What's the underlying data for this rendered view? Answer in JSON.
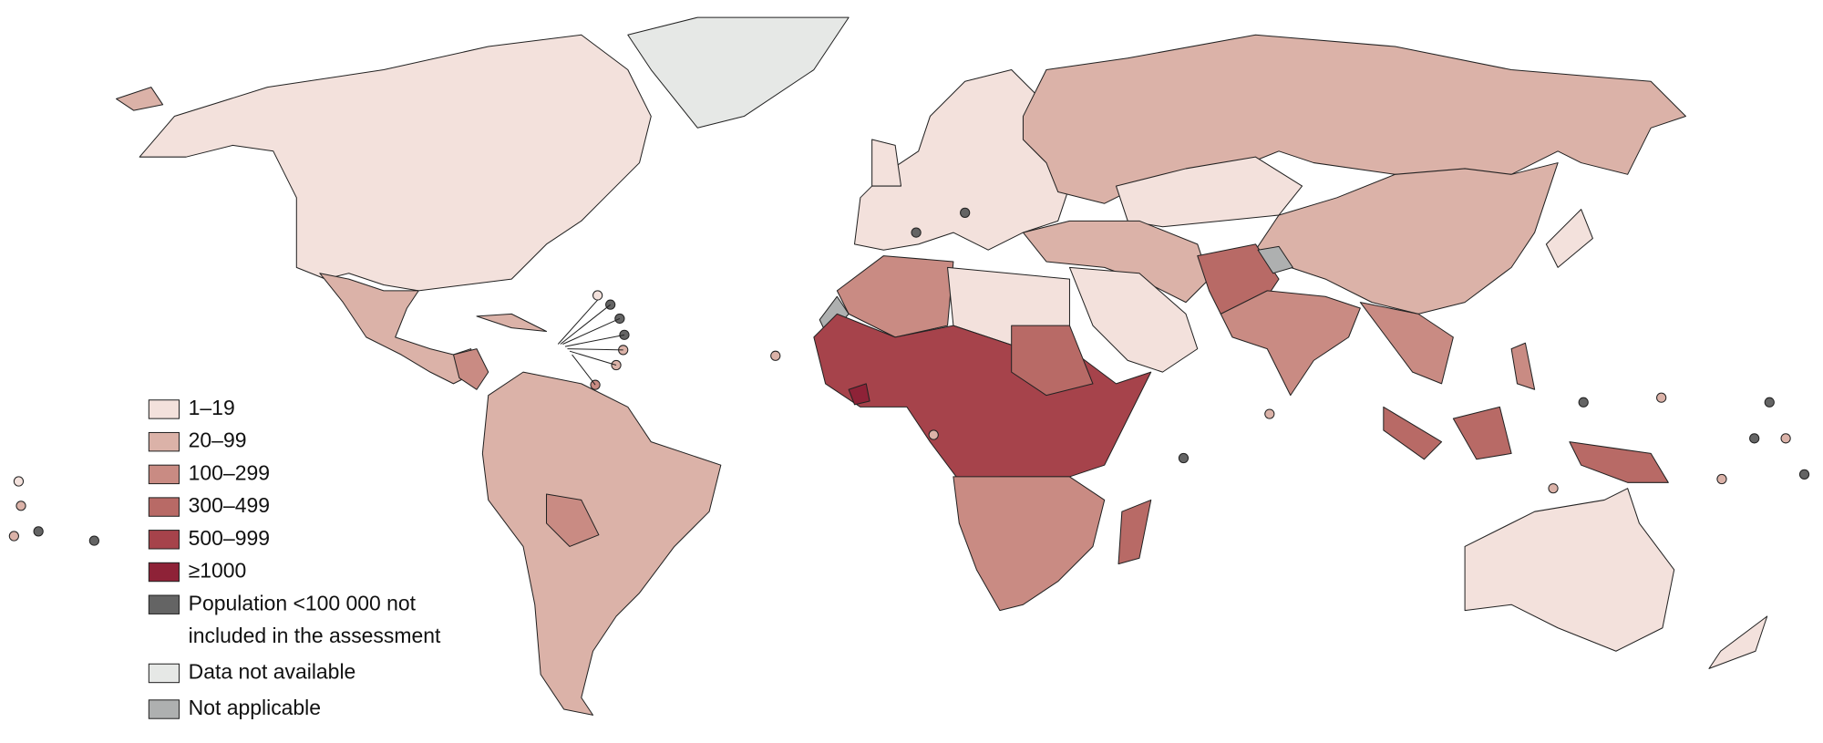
{
  "legend": [
    {
      "label": "1–19",
      "color": "#f3e1dc"
    },
    {
      "label": "20–99",
      "color": "#dbb2a8"
    },
    {
      "label": "100–299",
      "color": "#c98b83"
    },
    {
      "label": "300–499",
      "color": "#b86a66"
    },
    {
      "label": "500–999",
      "color": "#a6434b"
    },
    {
      "label": "≥1000",
      "color": "#8e2237"
    },
    {
      "label": [
        "Population <100 000 not",
        "included in the assessment"
      ],
      "color": "#646464"
    },
    {
      "label": "Data not available",
      "color": "#e6e8e6"
    },
    {
      "label": "Not applicable",
      "color": "#aeb0b0"
    }
  ]
}
